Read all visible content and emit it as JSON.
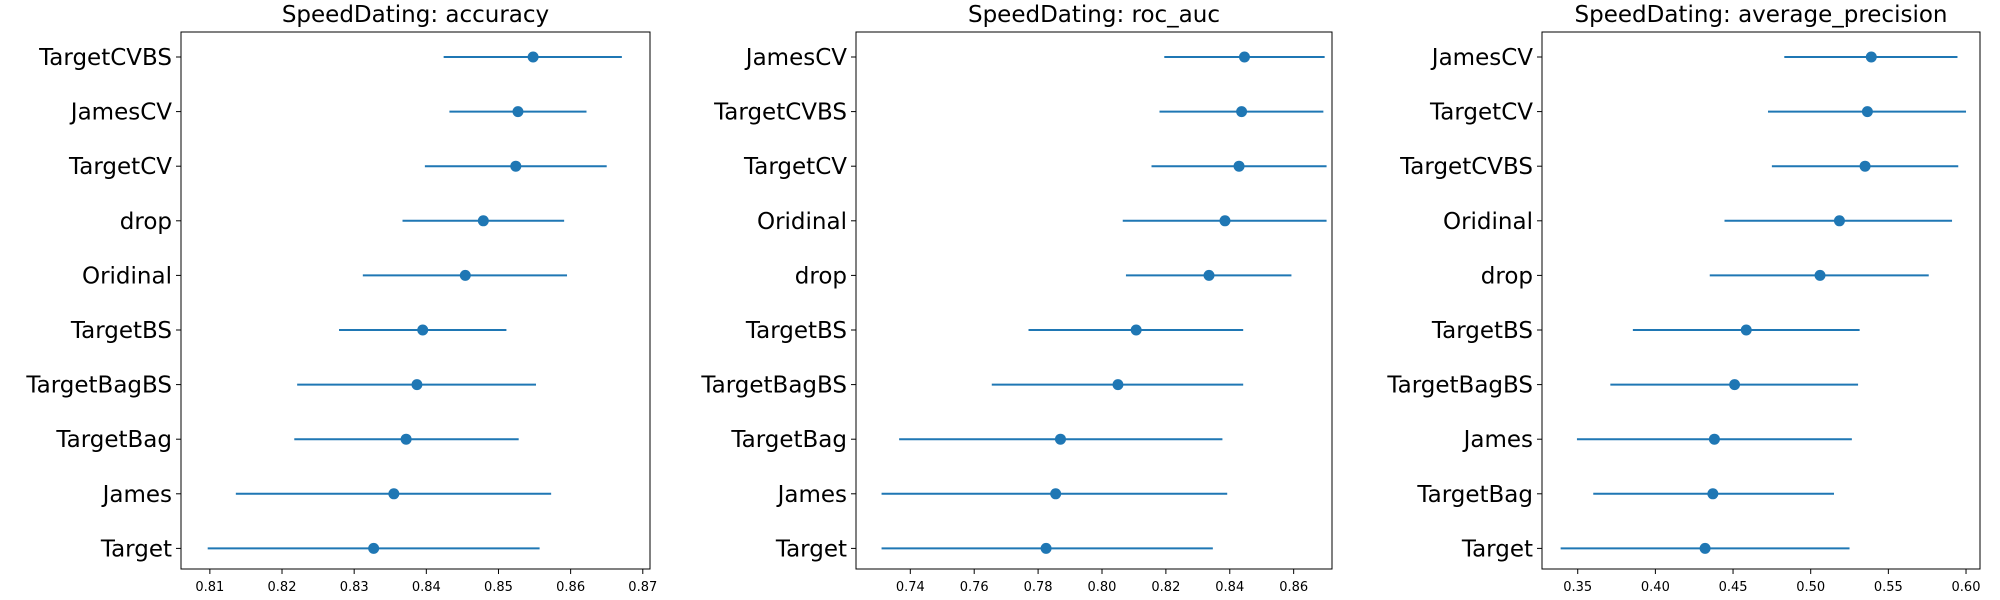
{
  "chart_data": [
    {
      "type": "scatter",
      "title": "SpeedDating: accuracy",
      "xlim": [
        0.806,
        0.871
      ],
      "xticks": [
        0.81,
        0.82,
        0.83,
        0.84,
        0.85,
        0.86,
        0.87
      ],
      "xtick_labels": [
        "0.81",
        "0.82",
        "0.83",
        "0.84",
        "0.85",
        "0.86",
        "0.87"
      ],
      "color": "#1f77b4",
      "points": [
        {
          "label": "TargetCVBS",
          "mean": 0.8548,
          "low": 0.8424,
          "high": 0.8671
        },
        {
          "label": "JamesCV",
          "mean": 0.8527,
          "low": 0.8432,
          "high": 0.8622
        },
        {
          "label": "TargetCV",
          "mean": 0.8524,
          "low": 0.8398,
          "high": 0.865
        },
        {
          "label": "drop",
          "mean": 0.8479,
          "low": 0.8367,
          "high": 0.8591
        },
        {
          "label": "Oridinal",
          "mean": 0.8454,
          "low": 0.8312,
          "high": 0.8595
        },
        {
          "label": "TargetBS",
          "mean": 0.8395,
          "low": 0.8279,
          "high": 0.8511
        },
        {
          "label": "TargetBagBS",
          "mean": 0.8387,
          "low": 0.8221,
          "high": 0.8552
        },
        {
          "label": "TargetBag",
          "mean": 0.8372,
          "low": 0.8217,
          "high": 0.8528
        },
        {
          "label": "James",
          "mean": 0.8355,
          "low": 0.8136,
          "high": 0.8573
        },
        {
          "label": "Target",
          "mean": 0.8327,
          "low": 0.8097,
          "high": 0.8557
        }
      ]
    },
    {
      "type": "scatter",
      "title": "SpeedDating: roc_auc",
      "xlim": [
        0.723,
        0.872
      ],
      "xticks": [
        0.74,
        0.76,
        0.78,
        0.8,
        0.82,
        0.84,
        0.86
      ],
      "xtick_labels": [
        "0.74",
        "0.76",
        "0.78",
        "0.80",
        "0.82",
        "0.84",
        "0.86"
      ],
      "color": "#1f77b4",
      "points": [
        {
          "label": "JamesCV",
          "mean": 0.8446,
          "low": 0.8195,
          "high": 0.8697
        },
        {
          "label": "TargetCVBS",
          "mean": 0.8437,
          "low": 0.818,
          "high": 0.8693
        },
        {
          "label": "TargetCV",
          "mean": 0.8429,
          "low": 0.8155,
          "high": 0.8703
        },
        {
          "label": "Oridinal",
          "mean": 0.8385,
          "low": 0.8065,
          "high": 0.8703
        },
        {
          "label": "drop",
          "mean": 0.8335,
          "low": 0.8075,
          "high": 0.8593
        },
        {
          "label": "TargetBS",
          "mean": 0.8107,
          "low": 0.777,
          "high": 0.8442
        },
        {
          "label": "TargetBagBS",
          "mean": 0.805,
          "low": 0.7655,
          "high": 0.8442
        },
        {
          "label": "TargetBag",
          "mean": 0.787,
          "low": 0.7365,
          "high": 0.8377
        },
        {
          "label": "James",
          "mean": 0.7855,
          "low": 0.731,
          "high": 0.8392
        },
        {
          "label": "Target",
          "mean": 0.7825,
          "low": 0.731,
          "high": 0.8347
        }
      ]
    },
    {
      "type": "scatter",
      "title": "SpeedDating: average_precision",
      "xlim": [
        0.327,
        0.609
      ],
      "xticks": [
        0.35,
        0.4,
        0.45,
        0.5,
        0.55,
        0.6
      ],
      "xtick_labels": [
        "0.35",
        "0.40",
        "0.45",
        "0.50",
        "0.55",
        "0.60"
      ],
      "color": "#1f77b4",
      "points": [
        {
          "label": "JamesCV",
          "mean": 0.539,
          "low": 0.483,
          "high": 0.5945
        },
        {
          "label": "TargetCV",
          "mean": 0.5365,
          "low": 0.4725,
          "high": 0.6
        },
        {
          "label": "TargetCVBS",
          "mean": 0.535,
          "low": 0.475,
          "high": 0.595
        },
        {
          "label": "Oridinal",
          "mean": 0.5185,
          "low": 0.4445,
          "high": 0.591
        },
        {
          "label": "drop",
          "mean": 0.506,
          "low": 0.435,
          "high": 0.576
        },
        {
          "label": "TargetBS",
          "mean": 0.4585,
          "low": 0.3855,
          "high": 0.5315
        },
        {
          "label": "TargetBagBS",
          "mean": 0.451,
          "low": 0.371,
          "high": 0.5305
        },
        {
          "label": "James",
          "mean": 0.438,
          "low": 0.3495,
          "high": 0.5265
        },
        {
          "label": "TargetBag",
          "mean": 0.437,
          "low": 0.36,
          "high": 0.515
        },
        {
          "label": "Target",
          "mean": 0.432,
          "low": 0.339,
          "high": 0.525
        }
      ]
    }
  ]
}
